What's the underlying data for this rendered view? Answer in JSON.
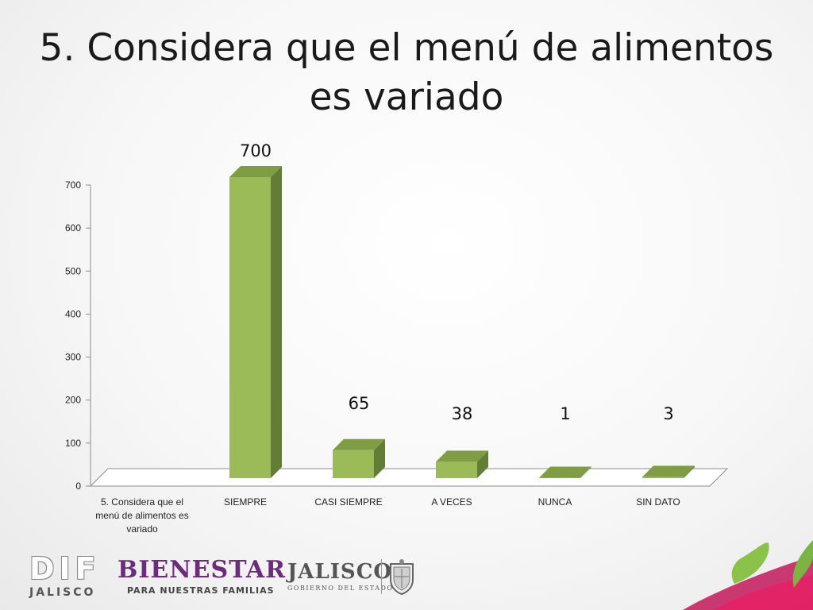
{
  "slide": {
    "title": "5. Considera que el menú de alimentos es variado"
  },
  "chart_data": {
    "type": "bar",
    "style": "3d-column",
    "categories": [
      "5. Considera que el menú de alimentos es variado",
      "SIEMPRE",
      "CASI SIEMPRE",
      "A VECES",
      "NUNCA",
      "SIN DATO"
    ],
    "series": [
      {
        "values": [
          null,
          700,
          65,
          38,
          1,
          3
        ]
      }
    ],
    "data_labels": [
      "",
      "700",
      "65",
      "38",
      "1",
      "3"
    ],
    "ylim": [
      0,
      700
    ],
    "yticks": [
      0,
      100,
      200,
      300,
      400,
      500,
      600,
      700
    ],
    "grid": false,
    "legend": "none",
    "colors": {
      "bar_front": "#9bbb59",
      "bar_side": "#637d36",
      "bar_top": "#7f9e44",
      "axis": "#8c8c8c"
    }
  },
  "logos": {
    "dif": {
      "big": "DIF",
      "small": "JALISCO"
    },
    "bienestar": {
      "big": "BIENESTAR",
      "small": "PARA NUESTRAS FAMILIAS"
    },
    "jalisco": {
      "big": "JALISCO",
      "small": "GOBIERNO DEL ESTADO"
    }
  }
}
